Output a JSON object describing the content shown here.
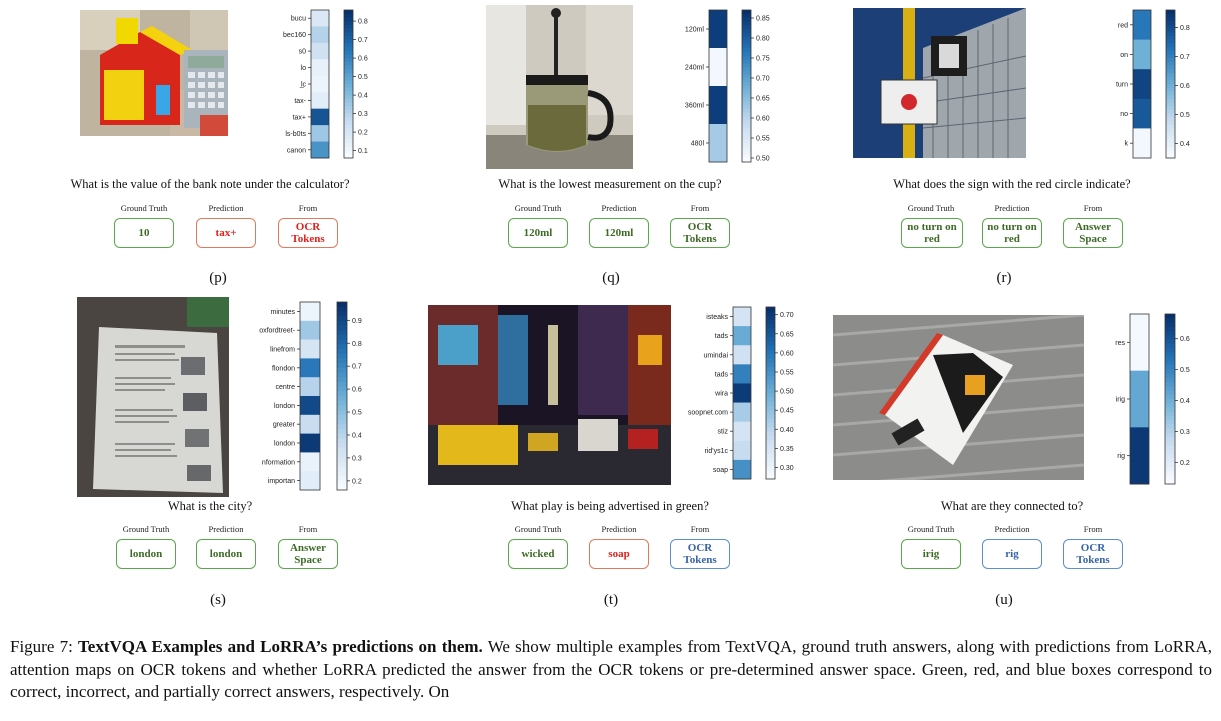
{
  "panels": [
    {
      "id": "p",
      "letter": "(p)",
      "question": "What is the value of the bank note under the calculator?",
      "labels": {
        "gt": "Ground Truth",
        "pred": "Prediction",
        "from": "From"
      },
      "ground_truth": "10",
      "gt_status": "correct",
      "prediction": "tax+",
      "pred_status": "incorrect",
      "source": "OCR Tokens",
      "source_status": "incorrect",
      "heatmap": {
        "tokens": [
          "bucu",
          "bec160",
          "s0",
          "lo",
          "l̲c",
          "tax-",
          "tax+",
          "ls-b0ts",
          "canon"
        ],
        "values": [
          0.18,
          0.3,
          0.22,
          0.12,
          0.1,
          0.15,
          0.75,
          0.35,
          0.55
        ],
        "ticks": [
          "0.8",
          "0.7",
          "0.6",
          "0.5",
          "0.4",
          "0.3",
          "0.2",
          "0.1"
        ],
        "tick_values": [
          0.8,
          0.7,
          0.6,
          0.5,
          0.4,
          0.3,
          0.2,
          0.1
        ],
        "range": [
          0.06,
          0.86
        ]
      }
    },
    {
      "id": "q",
      "letter": "(q)",
      "question": "What is the lowest measurement on the cup?",
      "labels": {
        "gt": "Ground Truth",
        "pred": "Prediction",
        "from": "From"
      },
      "ground_truth": "120ml",
      "gt_status": "correct",
      "prediction": "120ml",
      "pred_status": "correct",
      "source": "OCR Tokens",
      "source_status": "correct",
      "heatmap": {
        "tokens": [
          "120ml",
          "240ml",
          "360ml",
          "480l"
        ],
        "values": [
          0.85,
          0.5,
          0.85,
          0.62
        ],
        "ticks": [
          "0.85",
          "0.80",
          "0.75",
          "0.70",
          "0.65",
          "0.60",
          "0.55",
          "0.50"
        ],
        "tick_values": [
          0.85,
          0.8,
          0.75,
          0.7,
          0.65,
          0.6,
          0.55,
          0.5
        ],
        "range": [
          0.49,
          0.87
        ]
      }
    },
    {
      "id": "r",
      "letter": "(r)",
      "question": "What does the sign with the red circle indicate?",
      "labels": {
        "gt": "Ground Truth",
        "pred": "Prediction",
        "from": "From"
      },
      "ground_truth": "no turn on red",
      "gt_status": "correct",
      "prediction": "no turn on red",
      "pred_status": "correct",
      "source": "Answer Space",
      "source_status": "correct",
      "heatmap": {
        "tokens": [
          "red",
          "on",
          "turn",
          "no",
          "k"
        ],
        "values": [
          0.72,
          0.6,
          0.82,
          0.78,
          0.36
        ],
        "ticks": [
          "0.8",
          "0.7",
          "0.6",
          "0.5",
          "0.4"
        ],
        "tick_values": [
          0.8,
          0.7,
          0.6,
          0.5,
          0.4
        ],
        "range": [
          0.35,
          0.86
        ]
      }
    },
    {
      "id": "s",
      "letter": "(s)",
      "question": "What is the city?",
      "labels": {
        "gt": "Ground Truth",
        "pred": "Prediction",
        "from": "From"
      },
      "ground_truth": "london",
      "gt_status": "correct",
      "prediction": "london",
      "pred_status": "correct",
      "source": "Answer Space",
      "source_status": "correct",
      "heatmap": {
        "tokens": [
          "minutes",
          "oxfordtreet-",
          "linefrom",
          "flondon",
          "centre",
          "london",
          "greater",
          "london",
          "nformation",
          "importan"
        ],
        "values": [
          0.2,
          0.45,
          0.3,
          0.75,
          0.4,
          0.9,
          0.35,
          0.95,
          0.22,
          0.25
        ],
        "ticks": [
          "0.9",
          "0.8",
          "0.7",
          "0.6",
          "0.5",
          "0.4",
          "0.3",
          "0.2"
        ],
        "tick_values": [
          0.9,
          0.8,
          0.7,
          0.6,
          0.5,
          0.4,
          0.3,
          0.2
        ],
        "range": [
          0.16,
          0.98
        ]
      }
    },
    {
      "id": "t",
      "letter": "(t)",
      "question": "What play is being advertised in green?",
      "labels": {
        "gt": "Ground Truth",
        "pred": "Prediction",
        "from": "From"
      },
      "ground_truth": "wicked",
      "gt_status": "correct",
      "prediction": "soap",
      "pred_status": "incorrect",
      "source": "OCR Tokens",
      "source_status": "partial",
      "heatmap": {
        "tokens": [
          "isteaks",
          "tads",
          "umindai",
          "tads",
          "wira",
          "soopnet.com",
          "stiz",
          "rid'ys1c",
          "soap"
        ],
        "values": [
          0.35,
          0.5,
          0.36,
          0.58,
          0.7,
          0.42,
          0.35,
          0.38,
          0.55
        ],
        "ticks": [
          "0.70",
          "0.65",
          "0.60",
          "0.55",
          "0.50",
          "0.45",
          "0.40",
          "0.35",
          "0.30"
        ],
        "tick_values": [
          0.7,
          0.65,
          0.6,
          0.55,
          0.5,
          0.45,
          0.4,
          0.35,
          0.3
        ],
        "range": [
          0.27,
          0.72
        ]
      }
    },
    {
      "id": "u",
      "letter": "(u)",
      "question": "What are they connected to?",
      "labels": {
        "gt": "Ground Truth",
        "pred": "Prediction",
        "from": "From"
      },
      "ground_truth": "irig",
      "gt_status": "correct",
      "prediction": "rig",
      "pred_status": "partial",
      "source": "OCR Tokens",
      "source_status": "partial",
      "heatmap": {
        "tokens": [
          "res",
          "irig",
          "rig"
        ],
        "values": [
          0.14,
          0.42,
          0.66
        ],
        "ticks": [
          "0.6",
          "0.5",
          "0.4",
          "0.3",
          "0.2"
        ],
        "tick_values": [
          0.6,
          0.5,
          0.4,
          0.3,
          0.2
        ],
        "range": [
          0.13,
          0.68
        ]
      }
    }
  ],
  "caption": {
    "label": "Figure 7:",
    "bold": "TextVQA Examples and LoRRA’s predictions on them.",
    "text": "We show multiple examples from TextVQA, ground truth answers, along with predictions from LoRRA, attention maps on OCR tokens and whether LoRRA predicted the answer from the OCR tokens or pre-determined answer space. Green, red, and blue boxes correspond to correct, incorrect, and partially correct answers, respectively. On"
  }
}
